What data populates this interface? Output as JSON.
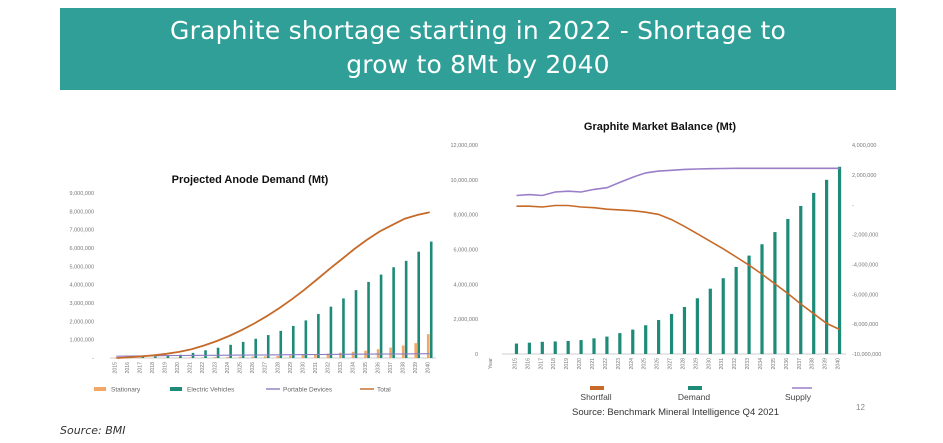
{
  "header": {
    "title_line1": "Graphite shortage starting in 2022 - Shortage to",
    "title_line2": "grow to 8Mt by 2040",
    "bg_color": "#2f9f98"
  },
  "source_note": "Source: BMI",
  "footer": {
    "source": "Source:   Benchmark Mineral Intelligence Q4 2021",
    "page_number": "12"
  },
  "chart_data": [
    {
      "type": "bar",
      "title": "Projected Anode Demand (Mt)",
      "categories": [
        "2015",
        "2016",
        "2017",
        "2018",
        "2019",
        "2020",
        "2021",
        "2022",
        "2023",
        "2024",
        "2025",
        "2026",
        "2027",
        "2028",
        "2029",
        "2030",
        "2031",
        "2032",
        "2033",
        "2034",
        "2035",
        "2036",
        "2037",
        "2038",
        "2039",
        "2040"
      ],
      "yticks": [
        "-",
        "1,000,000",
        "2,000,000",
        "3,000,000",
        "4,000,000",
        "5,000,000",
        "6,000,000",
        "7,000,000",
        "8,000,000",
        "9,000,000"
      ],
      "ylim": [
        0,
        9000000
      ],
      "series": [
        {
          "name": "Stationary",
          "kind": "bar",
          "color": "#f2a766",
          "values": [
            2000,
            4000,
            6000,
            8000,
            12000,
            20000,
            30000,
            40000,
            50000,
            60000,
            70000,
            80000,
            90000,
            110000,
            130000,
            160000,
            200000,
            240000,
            290000,
            340000,
            400000,
            480000,
            570000,
            680000,
            810000,
            1300000
          ]
        },
        {
          "name": "Electric Vehicles",
          "kind": "bar",
          "color": "#1e8a78",
          "values": [
            20000,
            40000,
            60000,
            80000,
            120000,
            180000,
            280000,
            420000,
            560000,
            720000,
            880000,
            1050000,
            1250000,
            1480000,
            1750000,
            2050000,
            2400000,
            2800000,
            3250000,
            3700000,
            4150000,
            4550000,
            4950000,
            5300000,
            5800000,
            6350000
          ]
        },
        {
          "name": "Portable Devices",
          "kind": "line",
          "color": "#8e7cc3",
          "values": [
            100000,
            110000,
            115000,
            120000,
            130000,
            135000,
            140000,
            145000,
            150000,
            155000,
            160000,
            165000,
            170000,
            175000,
            180000,
            185000,
            190000,
            195000,
            200000,
            205000,
            210000,
            215000,
            220000,
            225000,
            230000,
            235000
          ]
        },
        {
          "name": "Total",
          "kind": "line",
          "color": "#c56a28",
          "values": [
            0,
            40000,
            90000,
            150000,
            230000,
            330000,
            480000,
            680000,
            920000,
            1200000,
            1520000,
            1880000,
            2280000,
            2720000,
            3200000,
            3720000,
            4280000,
            4850000,
            5400000,
            5950000,
            6450000,
            6900000,
            7250000,
            7600000,
            7800000,
            7950000
          ]
        }
      ],
      "legend": [
        "Stationary",
        "Electric Vehicles",
        "Portable Devices",
        "Total"
      ]
    },
    {
      "type": "bar",
      "title": "Graphite Market Balance (Mt)",
      "xlabel": "Year",
      "categories": [
        "2015",
        "2016",
        "2017",
        "2018",
        "2019",
        "2020",
        "2021",
        "2022",
        "2023",
        "2024",
        "2025",
        "2026",
        "2027",
        "2028",
        "2029",
        "2030",
        "2031",
        "2032",
        "2033",
        "2034",
        "2035",
        "2036",
        "2037",
        "2038",
        "2039",
        "2040"
      ],
      "left_yticks": [
        "0",
        "2,000,000",
        "4,000,000",
        "6,000,000",
        "8,000,000",
        "10,000,000",
        "12,000,000"
      ],
      "right_yticks": [
        "-10,000,000",
        "-8,000,000",
        "-6,000,000",
        "-4,000,000",
        "-2,000,000",
        "-",
        "2,000,000",
        "4,000,000"
      ],
      "ylim_left": [
        0,
        12000000
      ],
      "ylim_right": [
        -10000000,
        4000000
      ],
      "series": [
        {
          "name": "Demand",
          "kind": "bar",
          "axis": "left",
          "color": "#1e8a78",
          "values": [
            600000,
            650000,
            700000,
            720000,
            750000,
            800000,
            900000,
            1000000,
            1200000,
            1400000,
            1650000,
            1950000,
            2300000,
            2700000,
            3200000,
            3750000,
            4350000,
            5000000,
            5650000,
            6300000,
            7000000,
            7750000,
            8500000,
            9250000,
            10000000,
            10750000
          ]
        },
        {
          "name": "Supply",
          "kind": "line",
          "axis": "left",
          "color": "#9b7ec8",
          "values": [
            9100000,
            9150000,
            9100000,
            9300000,
            9350000,
            9300000,
            9450000,
            9550000,
            9850000,
            10150000,
            10400000,
            10500000,
            10550000,
            10600000,
            10620000,
            10640000,
            10650000,
            10660000,
            10660000,
            10660000,
            10660000,
            10660000,
            10660000,
            10660000,
            10660000,
            10660000
          ]
        },
        {
          "name": "Shortfall",
          "kind": "line",
          "axis": "right",
          "color": "#c56a28",
          "values": [
            -100000,
            -100000,
            -150000,
            -50000,
            -50000,
            -150000,
            -200000,
            -300000,
            -350000,
            -400000,
            -500000,
            -650000,
            -1000000,
            -1450000,
            -1950000,
            -2450000,
            -2950000,
            -3500000,
            -4050000,
            -4650000,
            -5300000,
            -5950000,
            -6650000,
            -7300000,
            -7950000,
            -8350000
          ]
        }
      ],
      "legend": [
        "Shortfall",
        "Demand",
        "Supply"
      ]
    }
  ]
}
